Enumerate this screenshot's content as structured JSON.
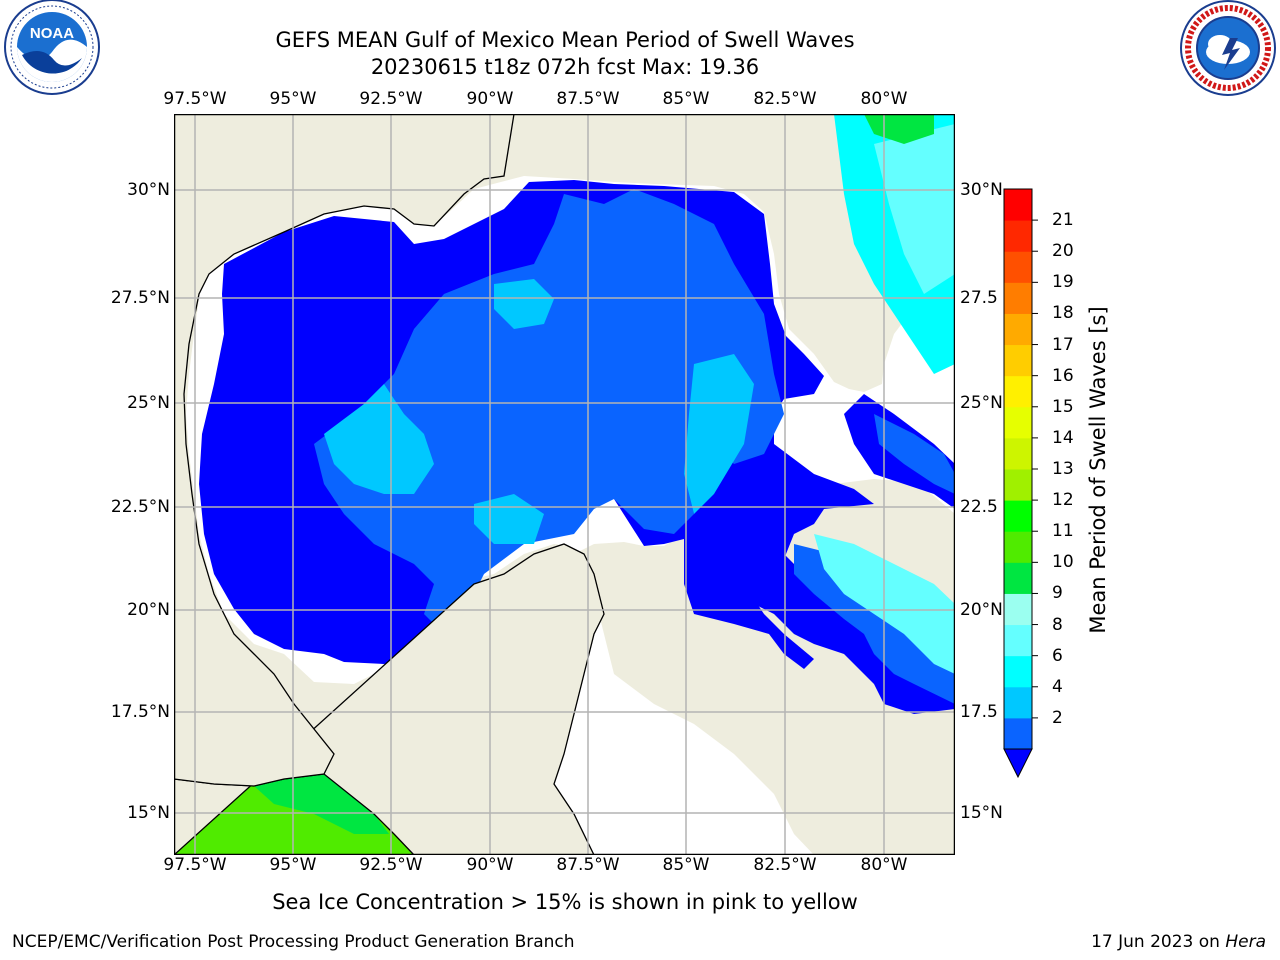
{
  "title": {
    "line1": "GEFS MEAN Gulf of Mexico Mean Period of Swell Waves",
    "line2": "20230615 t18z 072h fcst   Max: 19.36"
  },
  "axes": {
    "lon_labels": [
      "97.5°W",
      "95°W",
      "92.5°W",
      "90°W",
      "87.5°W",
      "85°W",
      "82.5°W",
      "80°W"
    ],
    "lat_labels": [
      "30°N",
      "27.5°N",
      "25°N",
      "22.5°N",
      "20°N",
      "17.5°N",
      "15°N"
    ],
    "right_lat_labels": [
      "30°N",
      "27.5",
      "25°N",
      "22.5",
      "20°N",
      "17.5",
      "15°N"
    ]
  },
  "colorbar": {
    "label": "Mean Period of Swell Waves [s]",
    "ticks": [
      "2",
      "4",
      "6",
      "8",
      "9",
      "10",
      "11",
      "12",
      "13",
      "14",
      "15",
      "16",
      "17",
      "18",
      "19",
      "20",
      "21"
    ],
    "colors": [
      "#0a64ff",
      "#00c8ff",
      "#00ffff",
      "#64ffff",
      "#9bfff0",
      "#00e641",
      "#50eb00",
      "#00ff00",
      "#a0f000",
      "#cdf500",
      "#e6ff00",
      "#fff000",
      "#ffcd00",
      "#ffaa00",
      "#ff7d00",
      "#ff5000",
      "#ff2800",
      "#ff0000"
    ],
    "under_color": "#0000ff"
  },
  "subtitle": "Sea Ice Concentration > 15% is shown in pink to yellow",
  "footer": {
    "left": "NCEP/EMC/Verification Post Processing Product Generation Branch",
    "right_date": "17 Jun 2023 on ",
    "right_host": "Hera"
  },
  "logos": {
    "noaa": "NOAA",
    "nws": "NATIONAL WEATHER SERVICE"
  },
  "colors": {
    "land": "#eeedde",
    "ocean_low": "#0000ff",
    "grid": "#b4b4b4"
  }
}
